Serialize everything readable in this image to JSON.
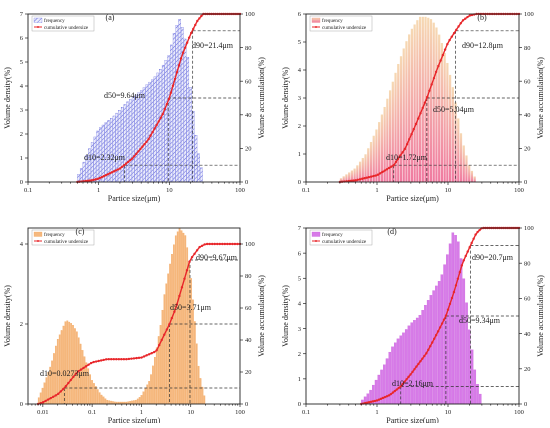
{
  "chart_data": [
    {
      "panel": "(a)",
      "type": "bar+line",
      "xlabel": "Partice size(μm)",
      "ylabel_left": "Volume density(%)",
      "ylabel_right": "Volume accumulation(%)",
      "xscale": "log",
      "xlim": [
        0.1,
        100
      ],
      "xticks": [
        "0.1",
        "1",
        "10",
        "100"
      ],
      "ylim_left": [
        0,
        7
      ],
      "yticks_left": [
        "0",
        "1",
        "2",
        "3",
        "4",
        "5",
        "6",
        "7"
      ],
      "ylim_right": [
        0,
        100
      ],
      "yticks_right": [
        "0",
        "20",
        "40",
        "60",
        "80",
        "100"
      ],
      "legend": [
        "frequency",
        "cumulative undersize"
      ],
      "bar_color": "#6a6ee0",
      "bar_style": "hatched",
      "line_color": "#e8262a",
      "annotations": [
        "d10=2.32μm",
        "d50=9.64μm",
        "d90=21.4μm"
      ],
      "d_values": [
        2.32,
        9.64,
        21.4
      ],
      "frequency": {
        "x": [
          0.5,
          0.6,
          0.7,
          0.8,
          0.9,
          1.0,
          1.3,
          1.6,
          2.0,
          2.5,
          3.0,
          4.0,
          5.0,
          6.0,
          8.0,
          10,
          12,
          14,
          16,
          18,
          20,
          25,
          30
        ],
        "y": [
          0.2,
          0.7,
          1.2,
          1.6,
          1.9,
          2.2,
          2.5,
          2.7,
          3.0,
          3.3,
          3.5,
          3.8,
          4.1,
          4.3,
          4.8,
          5.3,
          6.3,
          6.8,
          6.3,
          5.5,
          4.0,
          1.5,
          0.3
        ]
      },
      "cumulative": {
        "x": [
          0.5,
          0.8,
          1,
          2,
          3,
          5,
          8,
          10,
          15,
          20,
          25,
          30,
          40,
          100
        ],
        "y": [
          0,
          1,
          2,
          8,
          14,
          25,
          40,
          50,
          75,
          88,
          96,
          100,
          100,
          100
        ]
      }
    },
    {
      "panel": "(b)",
      "type": "bar+line",
      "xlabel": "Partice size(μm)",
      "ylabel_left": "Volume density(%)",
      "ylabel_right": "Volume accumulation(%)",
      "xscale": "log",
      "xlim": [
        0.1,
        100
      ],
      "xticks": [
        "0.1",
        "1",
        "10",
        "100"
      ],
      "ylim_left": [
        0,
        6
      ],
      "yticks_left": [
        "0",
        "1",
        "2",
        "3",
        "4",
        "5",
        "6"
      ],
      "ylim_right": [
        0,
        100
      ],
      "yticks_right": [
        "0",
        "20",
        "40",
        "60",
        "80",
        "100"
      ],
      "legend": [
        "frequency",
        "cumulative undersize"
      ],
      "bar_color": "#f2a0b6",
      "bar_color_top": "#f3c9a8",
      "line_color": "#e8262a",
      "annotations": [
        "d10=1.72μm",
        "d50=5.04μm",
        "d90=12.8μm"
      ],
      "d_values": [
        1.72,
        5.04,
        12.8
      ],
      "frequency": {
        "x": [
          0.3,
          0.5,
          0.7,
          1.0,
          1.3,
          1.6,
          2.0,
          2.5,
          3.0,
          4.0,
          5.0,
          6.0,
          7.0,
          8.0,
          10,
          12,
          14,
          16,
          20,
          25
        ],
        "y": [
          0.1,
          0.5,
          1.0,
          1.9,
          2.7,
          3.4,
          4.2,
          4.9,
          5.4,
          5.9,
          5.9,
          5.8,
          5.5,
          5.1,
          4.2,
          3.3,
          2.3,
          1.5,
          0.6,
          0.1
        ]
      },
      "cumulative": {
        "x": [
          0.3,
          0.5,
          1,
          1.72,
          2.5,
          3.5,
          5.04,
          7,
          10,
          12.8,
          16,
          20,
          25,
          100
        ],
        "y": [
          0,
          1,
          4,
          10,
          20,
          34,
          50,
          67,
          83,
          90,
          96,
          99,
          100,
          100
        ]
      }
    },
    {
      "panel": "(c)",
      "type": "bar+line",
      "xlabel": "Partice size(μm)",
      "ylabel_left": "Volume density(%)",
      "ylabel_right": "Volume accumulation(%)",
      "xscale": "log",
      "xlim": [
        0.005,
        100
      ],
      "xticks": [
        "0.01",
        "0.1",
        "1",
        "10",
        "100"
      ],
      "ylim_left": [
        0,
        4.4
      ],
      "yticks_left": [
        "0",
        "2",
        "4"
      ],
      "ylim_right": [
        0,
        110
      ],
      "yticks_right": [
        "0",
        "20",
        "40",
        "60",
        "80",
        "100"
      ],
      "legend": [
        "frequency",
        "cumulative undersize"
      ],
      "bar_color": "#f5b06e",
      "line_color": "#e8262a",
      "annotations": [
        "d10=0.0273μm",
        "d50=3.71μm",
        "d90=9.67μm"
      ],
      "d_values": [
        0.0273,
        3.71,
        9.67
      ],
      "frequency": {
        "x": [
          0.008,
          0.01,
          0.015,
          0.02,
          0.03,
          0.04,
          0.05,
          0.07,
          0.1,
          0.15,
          0.2,
          0.3,
          0.5,
          0.8,
          1.0,
          1.5,
          2.0,
          2.5,
          3.0,
          4.0,
          5.0,
          6.0,
          8.0,
          10,
          12,
          15,
          20
        ],
        "y": [
          0.1,
          0.4,
          1.0,
          1.6,
          2.1,
          2.0,
          1.8,
          1.2,
          0.6,
          0.25,
          0.1,
          0.05,
          0.05,
          0.1,
          0.2,
          0.6,
          1.3,
          2.0,
          2.8,
          3.6,
          4.2,
          4.4,
          4.2,
          3.3,
          2.2,
          0.8,
          0.1
        ]
      },
      "cumulative": {
        "x": [
          0.008,
          0.01,
          0.02,
          0.0273,
          0.05,
          0.1,
          0.2,
          0.5,
          1,
          2,
          3.71,
          5,
          9.67,
          15,
          20,
          100
        ],
        "y": [
          0,
          1,
          6,
          10,
          20,
          26,
          28,
          28,
          29,
          33,
          50,
          60,
          90,
          98,
          100,
          100
        ]
      }
    },
    {
      "panel": "(d)",
      "type": "bar+line",
      "xlabel": "Partice size(μm)",
      "ylabel_left": "Volume density(%)",
      "ylabel_right": "Volume accumulation(%)",
      "xscale": "log",
      "xlim": [
        0.1,
        100
      ],
      "xticks": [
        "0.1",
        "1",
        "10",
        "100"
      ],
      "ylim_left": [
        0,
        7
      ],
      "yticks_left": [
        "0",
        "1",
        "2",
        "3",
        "4",
        "5",
        "6",
        "7"
      ],
      "ylim_right": [
        0,
        100
      ],
      "yticks_right": [
        "0",
        "20",
        "40",
        "60",
        "80",
        "100"
      ],
      "legend": [
        "frequency",
        "cumulative undersize"
      ],
      "bar_color": "#d57ae6",
      "line_color": "#e8262a",
      "annotations": [
        "d10=2.16μm",
        "d50=9.34μm",
        "d90=20.7μm"
      ],
      "d_values": [
        2.16,
        9.34,
        20.7
      ],
      "frequency": {
        "x": [
          0.6,
          0.8,
          1.0,
          1.3,
          1.6,
          2.0,
          2.5,
          3.0,
          4.0,
          5.0,
          6.0,
          8.0,
          10,
          12,
          14,
          16,
          18,
          20,
          25,
          30
        ],
        "y": [
          0.1,
          0.5,
          1.0,
          1.6,
          2.2,
          2.6,
          2.9,
          3.2,
          3.5,
          4.0,
          4.4,
          5.0,
          6.0,
          6.9,
          6.5,
          5.5,
          4.3,
          3.0,
          1.0,
          0.2
        ]
      },
      "cumulative": {
        "x": [
          0.6,
          1,
          1.5,
          2.16,
          3,
          5,
          7,
          9.34,
          12,
          16,
          20.7,
          25,
          30,
          100
        ],
        "y": [
          0,
          2,
          5,
          10,
          17,
          29,
          40,
          50,
          63,
          80,
          90,
          97,
          100,
          100
        ]
      }
    }
  ]
}
